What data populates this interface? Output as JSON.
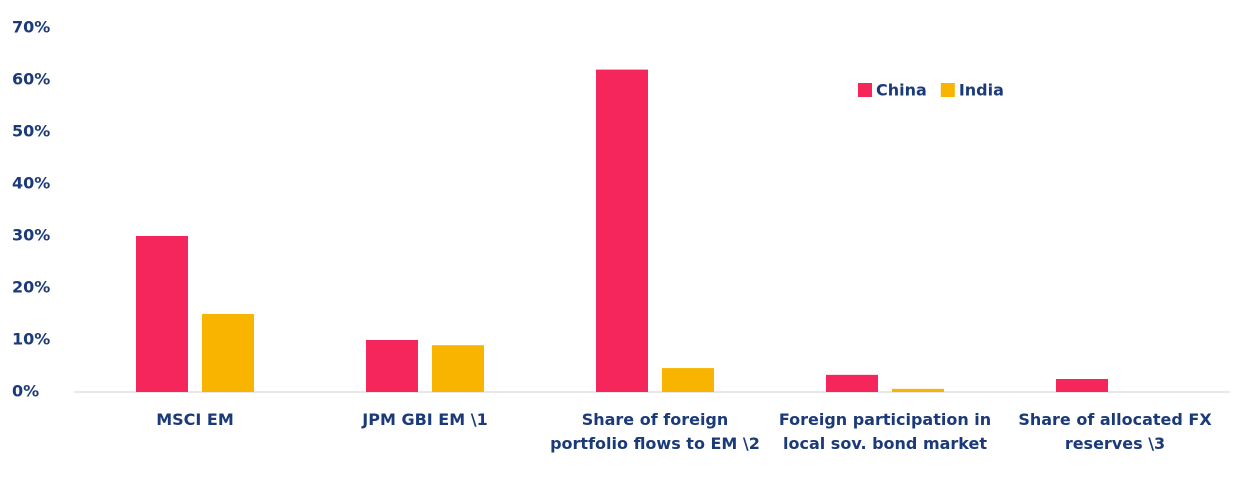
{
  "chart_data": {
    "type": "bar",
    "categories": [
      "MSCI EM",
      "JPM GBI EM \\1",
      "Share of foreign portfolio flows to EM \\2",
      "Foreign participation in local sov. bond market",
      "Share of allocated FX reserves \\3"
    ],
    "series": [
      {
        "name": "China",
        "color": "#f4265c",
        "values": [
          30,
          10,
          62,
          3.3,
          2.5
        ]
      },
      {
        "name": "India",
        "color": "#f9b400",
        "values": [
          15,
          9,
          4.6,
          0.6,
          0
        ]
      }
    ],
    "ylim": [
      0,
      70
    ],
    "yticks": [
      {
        "value": 0,
        "label": "0%"
      },
      {
        "value": 10,
        "label": "10%"
      },
      {
        "value": 20,
        "label": "20%"
      },
      {
        "value": 30,
        "label": "30%"
      },
      {
        "value": 40,
        "label": "40%"
      },
      {
        "value": 50,
        "label": "50%"
      },
      {
        "value": 60,
        "label": "60%"
      },
      {
        "value": 70,
        "label": "70%"
      }
    ],
    "grid": false,
    "legend": "top-right"
  }
}
